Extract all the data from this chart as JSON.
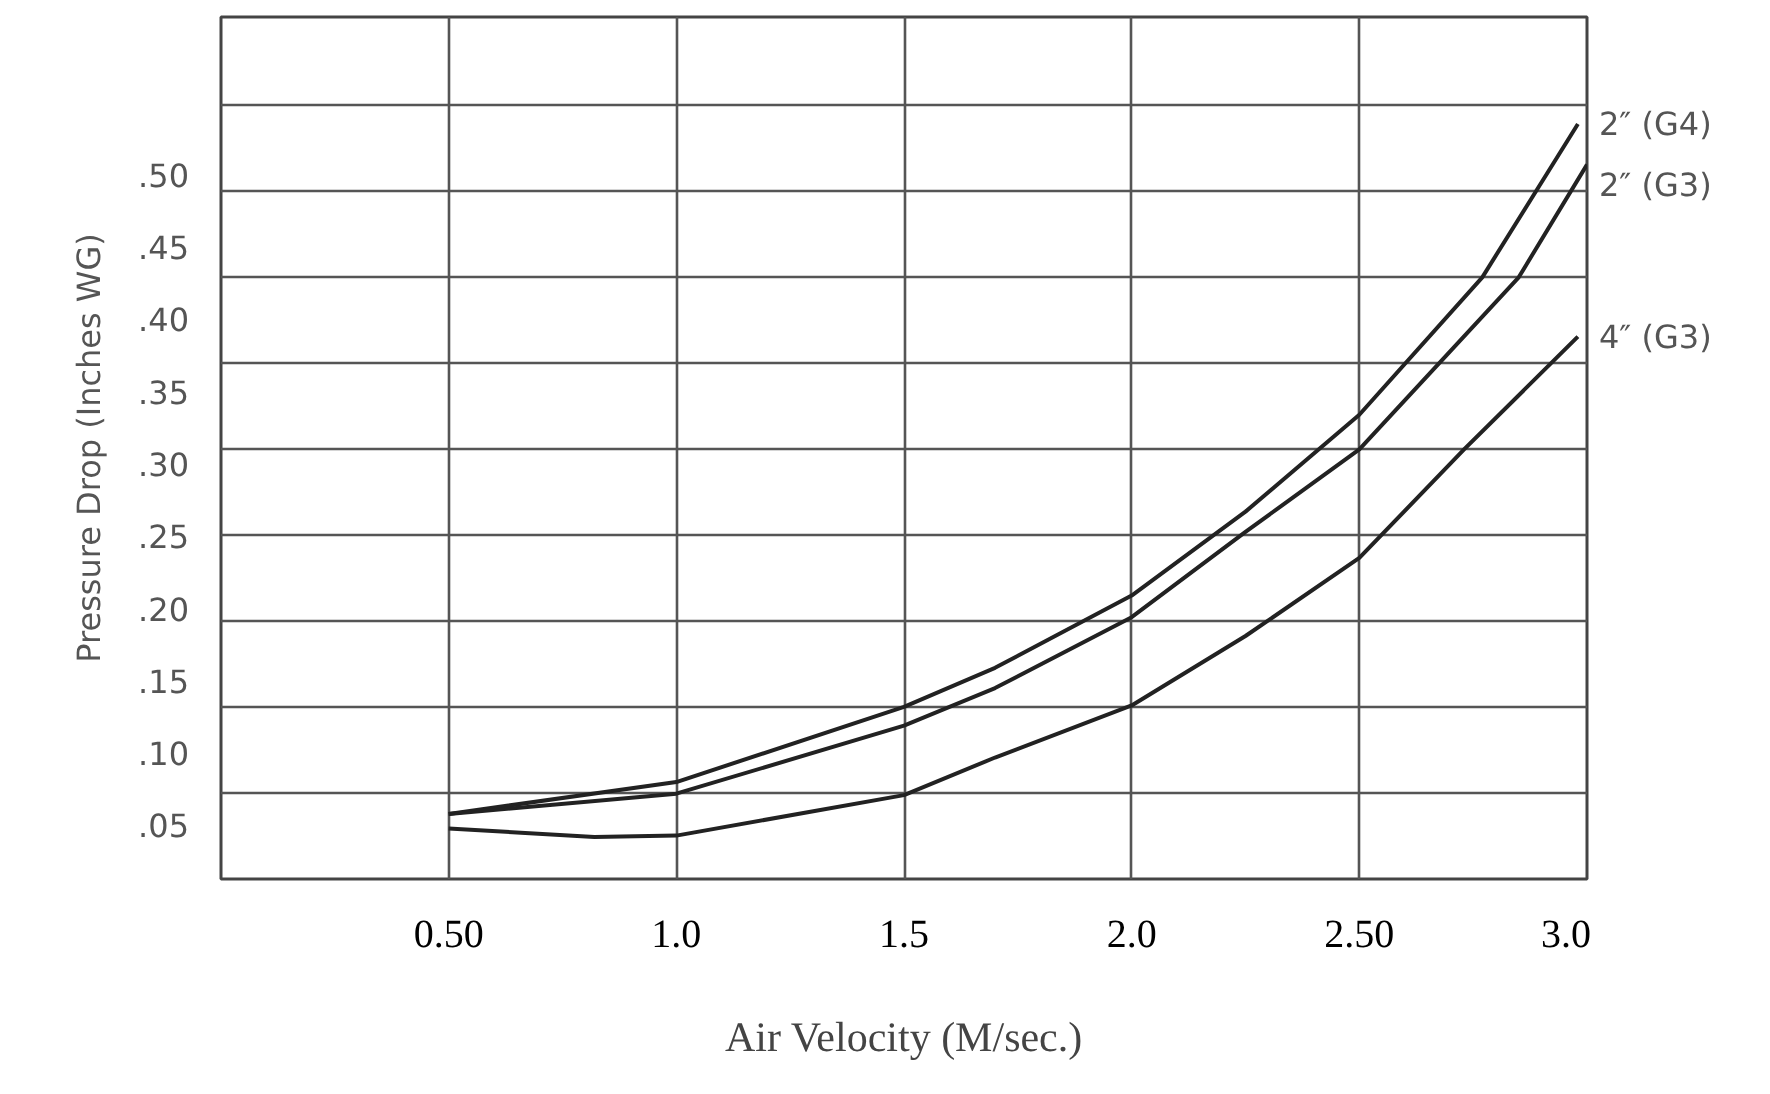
{
  "chart_data": {
    "type": "line",
    "xlabel": "Air Velocity (M/sec.)",
    "ylabel": "Pressure Drop (Inches WG)",
    "xlim": [
      0,
      3.0
    ],
    "ylim": [
      0.013,
      0.609
    ],
    "xticks": [
      {
        "value": 0.5,
        "label": "0.50"
      },
      {
        "value": 1.0,
        "label": "1.0"
      },
      1.5,
      {
        "value": 2.0,
        "label": "2.0"
      },
      {
        "value": 2.5,
        "label": "2.50"
      },
      {
        "value": 3.0,
        "label": "3.0"
      }
    ],
    "yticks": [
      {
        "value": 0.5,
        "label": ".50"
      },
      {
        "value": 0.45,
        "label": ".45"
      },
      {
        "value": 0.4,
        "label": ".40"
      },
      {
        "value": 0.35,
        "label": ".35"
      },
      {
        "value": 0.3,
        "label": ".30"
      },
      {
        "value": 0.25,
        "label": ".25"
      },
      {
        "value": 0.2,
        "label": ".20"
      },
      {
        "value": 0.15,
        "label": ".15"
      },
      {
        "value": 0.1,
        "label": ".10"
      },
      {
        "value": 0.05,
        "label": ".05"
      },
      {
        "value": 0.548,
        "label": null
      },
      {
        "value": 0.489,
        "label": null
      },
      {
        "value": 0.429,
        "label": null
      },
      {
        "value": 0.37,
        "label": null
      },
      {
        "value": 0.31,
        "label": null
      },
      {
        "value": 0.251,
        "label": null
      },
      {
        "value": 0.191,
        "label": null
      },
      {
        "value": 0.132,
        "label": null
      },
      {
        "value": 0.072,
        "label": null
      }
    ],
    "grid": true,
    "line_style": "solid",
    "marker": "none",
    "series": [
      {
        "name": "2″ (G4)",
        "color": "#222222",
        "x": [
          0.5,
          1.0,
          1.5,
          1.7,
          2.0,
          2.25,
          2.5,
          2.77,
          2.98
        ],
        "values": [
          0.058,
          0.08,
          0.132,
          0.159,
          0.209,
          0.267,
          0.334,
          0.429,
          0.535
        ]
      },
      {
        "name": "2″ (G3)",
        "color": "#222222",
        "x": [
          0.5,
          1.0,
          1.5,
          1.7,
          2.0,
          2.25,
          2.5,
          2.85,
          3.0
        ],
        "values": [
          0.058,
          0.072,
          0.119,
          0.145,
          0.194,
          0.253,
          0.31,
          0.429,
          0.507
        ]
      },
      {
        "name": "4″ (G3)",
        "color": "#222222",
        "x": [
          0.5,
          0.82,
          1.0,
          1.5,
          1.7,
          2.0,
          2.25,
          2.5,
          2.73,
          2.98
        ],
        "values": [
          0.048,
          0.042,
          0.043,
          0.071,
          0.097,
          0.133,
          0.181,
          0.235,
          0.31,
          0.388
        ]
      }
    ]
  }
}
